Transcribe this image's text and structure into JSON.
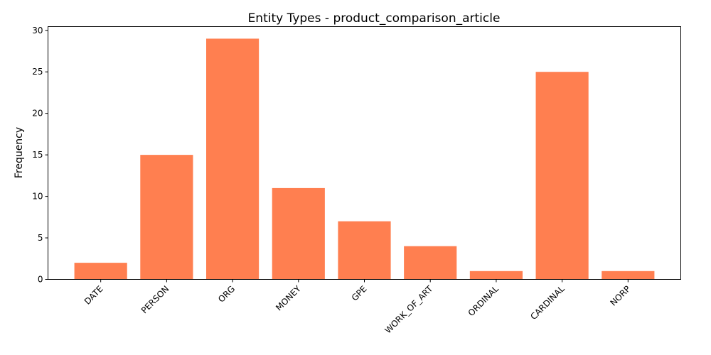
{
  "chart_data": {
    "type": "bar",
    "title": "Entity Types - product_comparison_article",
    "xlabel": "",
    "ylabel": "Frequency",
    "categories": [
      "DATE",
      "PERSON",
      "ORG",
      "MONEY",
      "GPE",
      "WORK_OF_ART",
      "ORDINAL",
      "CARDINAL",
      "NORP"
    ],
    "values": [
      2,
      15,
      29,
      11,
      7,
      4,
      1,
      25,
      1
    ],
    "ylim": [
      0,
      30.45
    ],
    "yticks": [
      0,
      5,
      10,
      15,
      20,
      25,
      30
    ],
    "bar_color": "#ff7f50",
    "grid": false,
    "legend": "none"
  }
}
